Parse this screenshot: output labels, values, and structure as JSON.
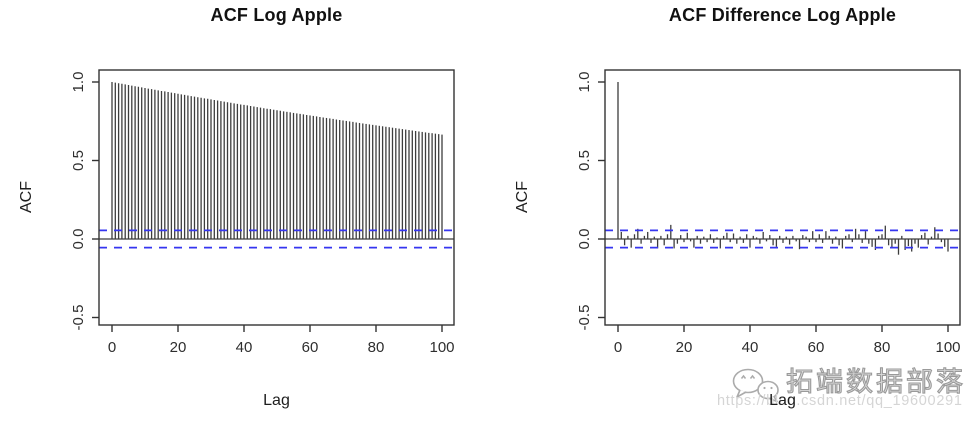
{
  "colors": {
    "bar": "#3d3d3d",
    "axis": "#333333",
    "conf": "#3636f0",
    "title": "#111111",
    "tick_label": "#2e2e2e",
    "watermark_outline": "#9a9a9a",
    "watermark_url": "#d5d5d5",
    "background": "#ffffff"
  },
  "watermark": {
    "icon": "wechat-icon",
    "brand_text": "拓端数据部落",
    "url_text": "https://blog.csdn.net/qq_19600291"
  },
  "chart_data": [
    {
      "type": "bar",
      "title": "ACF Log Apple",
      "xlabel": "Lag",
      "ylabel": "ACF",
      "xticks": [
        0,
        20,
        40,
        60,
        80,
        100
      ],
      "yticks": [
        1.0,
        0.5,
        0.0,
        -0.5
      ],
      "ytick_labels": [
        "1.0",
        "0.5",
        "0.0",
        "-0.5"
      ],
      "xlim": [
        -4,
        104
      ],
      "ylim": [
        -0.55,
        1.08
      ],
      "grid": false,
      "legend": null,
      "conf_level": 0.055,
      "conf_style": "dashed-blue",
      "x_start_lag": 0,
      "values": [
        1.0,
        0.996,
        0.992,
        0.989,
        0.985,
        0.981,
        0.977,
        0.973,
        0.97,
        0.966,
        0.962,
        0.958,
        0.955,
        0.951,
        0.947,
        0.943,
        0.94,
        0.936,
        0.932,
        0.929,
        0.925,
        0.921,
        0.918,
        0.914,
        0.91,
        0.907,
        0.903,
        0.9,
        0.896,
        0.893,
        0.889,
        0.885,
        0.882,
        0.878,
        0.875,
        0.871,
        0.868,
        0.864,
        0.861,
        0.857,
        0.854,
        0.851,
        0.847,
        0.844,
        0.84,
        0.837,
        0.833,
        0.83,
        0.827,
        0.823,
        0.82,
        0.817,
        0.813,
        0.81,
        0.807,
        0.803,
        0.8,
        0.797,
        0.794,
        0.79,
        0.787,
        0.784,
        0.781,
        0.777,
        0.774,
        0.771,
        0.768,
        0.765,
        0.761,
        0.758,
        0.755,
        0.752,
        0.749,
        0.746,
        0.742,
        0.739,
        0.736,
        0.733,
        0.73,
        0.727,
        0.724,
        0.721,
        0.718,
        0.715,
        0.712,
        0.709,
        0.706,
        0.703,
        0.7,
        0.697,
        0.694,
        0.691,
        0.688,
        0.685,
        0.682,
        0.679,
        0.676,
        0.674,
        0.671,
        0.668,
        0.665
      ]
    },
    {
      "type": "bar",
      "title": "ACF Difference Log Apple",
      "xlabel": "Lag",
      "ylabel": "ACF",
      "xticks": [
        0,
        20,
        40,
        60,
        80,
        100
      ],
      "yticks": [
        1.0,
        0.5,
        0.0,
        -0.5
      ],
      "ytick_labels": [
        "1.0",
        "0.5",
        "0.0",
        "-0.5"
      ],
      "xlim": [
        -4,
        104
      ],
      "ylim": [
        -0.55,
        1.08
      ],
      "grid": false,
      "legend": null,
      "conf_level": 0.055,
      "conf_style": "dashed-blue",
      "x_start_lag": 0,
      "values": [
        1.0,
        0.045,
        -0.04,
        0.02,
        -0.055,
        0.03,
        0.065,
        -0.03,
        0.02,
        0.045,
        -0.025,
        0.015,
        -0.06,
        0.02,
        -0.04,
        0.03,
        0.09,
        -0.06,
        -0.03,
        0.025,
        -0.02,
        0.04,
        -0.015,
        -0.055,
        0.02,
        -0.03,
        0.015,
        -0.02,
        0.03,
        -0.025,
        0.01,
        -0.06,
        0.02,
        0.04,
        -0.02,
        0.035,
        -0.03,
        0.015,
        -0.025,
        0.03,
        -0.055,
        0.02,
        0.01,
        -0.03,
        0.045,
        -0.015,
        0.025,
        -0.04,
        -0.05,
        0.02,
        -0.025,
        0.015,
        -0.035,
        0.02,
        -0.015,
        -0.065,
        0.025,
        0.015,
        -0.02,
        0.05,
        -0.02,
        0.03,
        -0.025,
        0.05,
        0.02,
        -0.03,
        0.015,
        -0.04,
        -0.06,
        0.02,
        0.03,
        -0.02,
        0.065,
        0.03,
        -0.025,
        0.05,
        -0.03,
        -0.05,
        -0.07,
        0.02,
        0.03,
        0.085,
        -0.04,
        -0.06,
        -0.03,
        -0.1,
        0.02,
        -0.07,
        -0.045,
        -0.08,
        -0.03,
        -0.055,
        0.025,
        0.04,
        -0.035,
        0.015,
        0.075,
        0.035,
        -0.02,
        -0.05,
        -0.08
      ]
    }
  ]
}
